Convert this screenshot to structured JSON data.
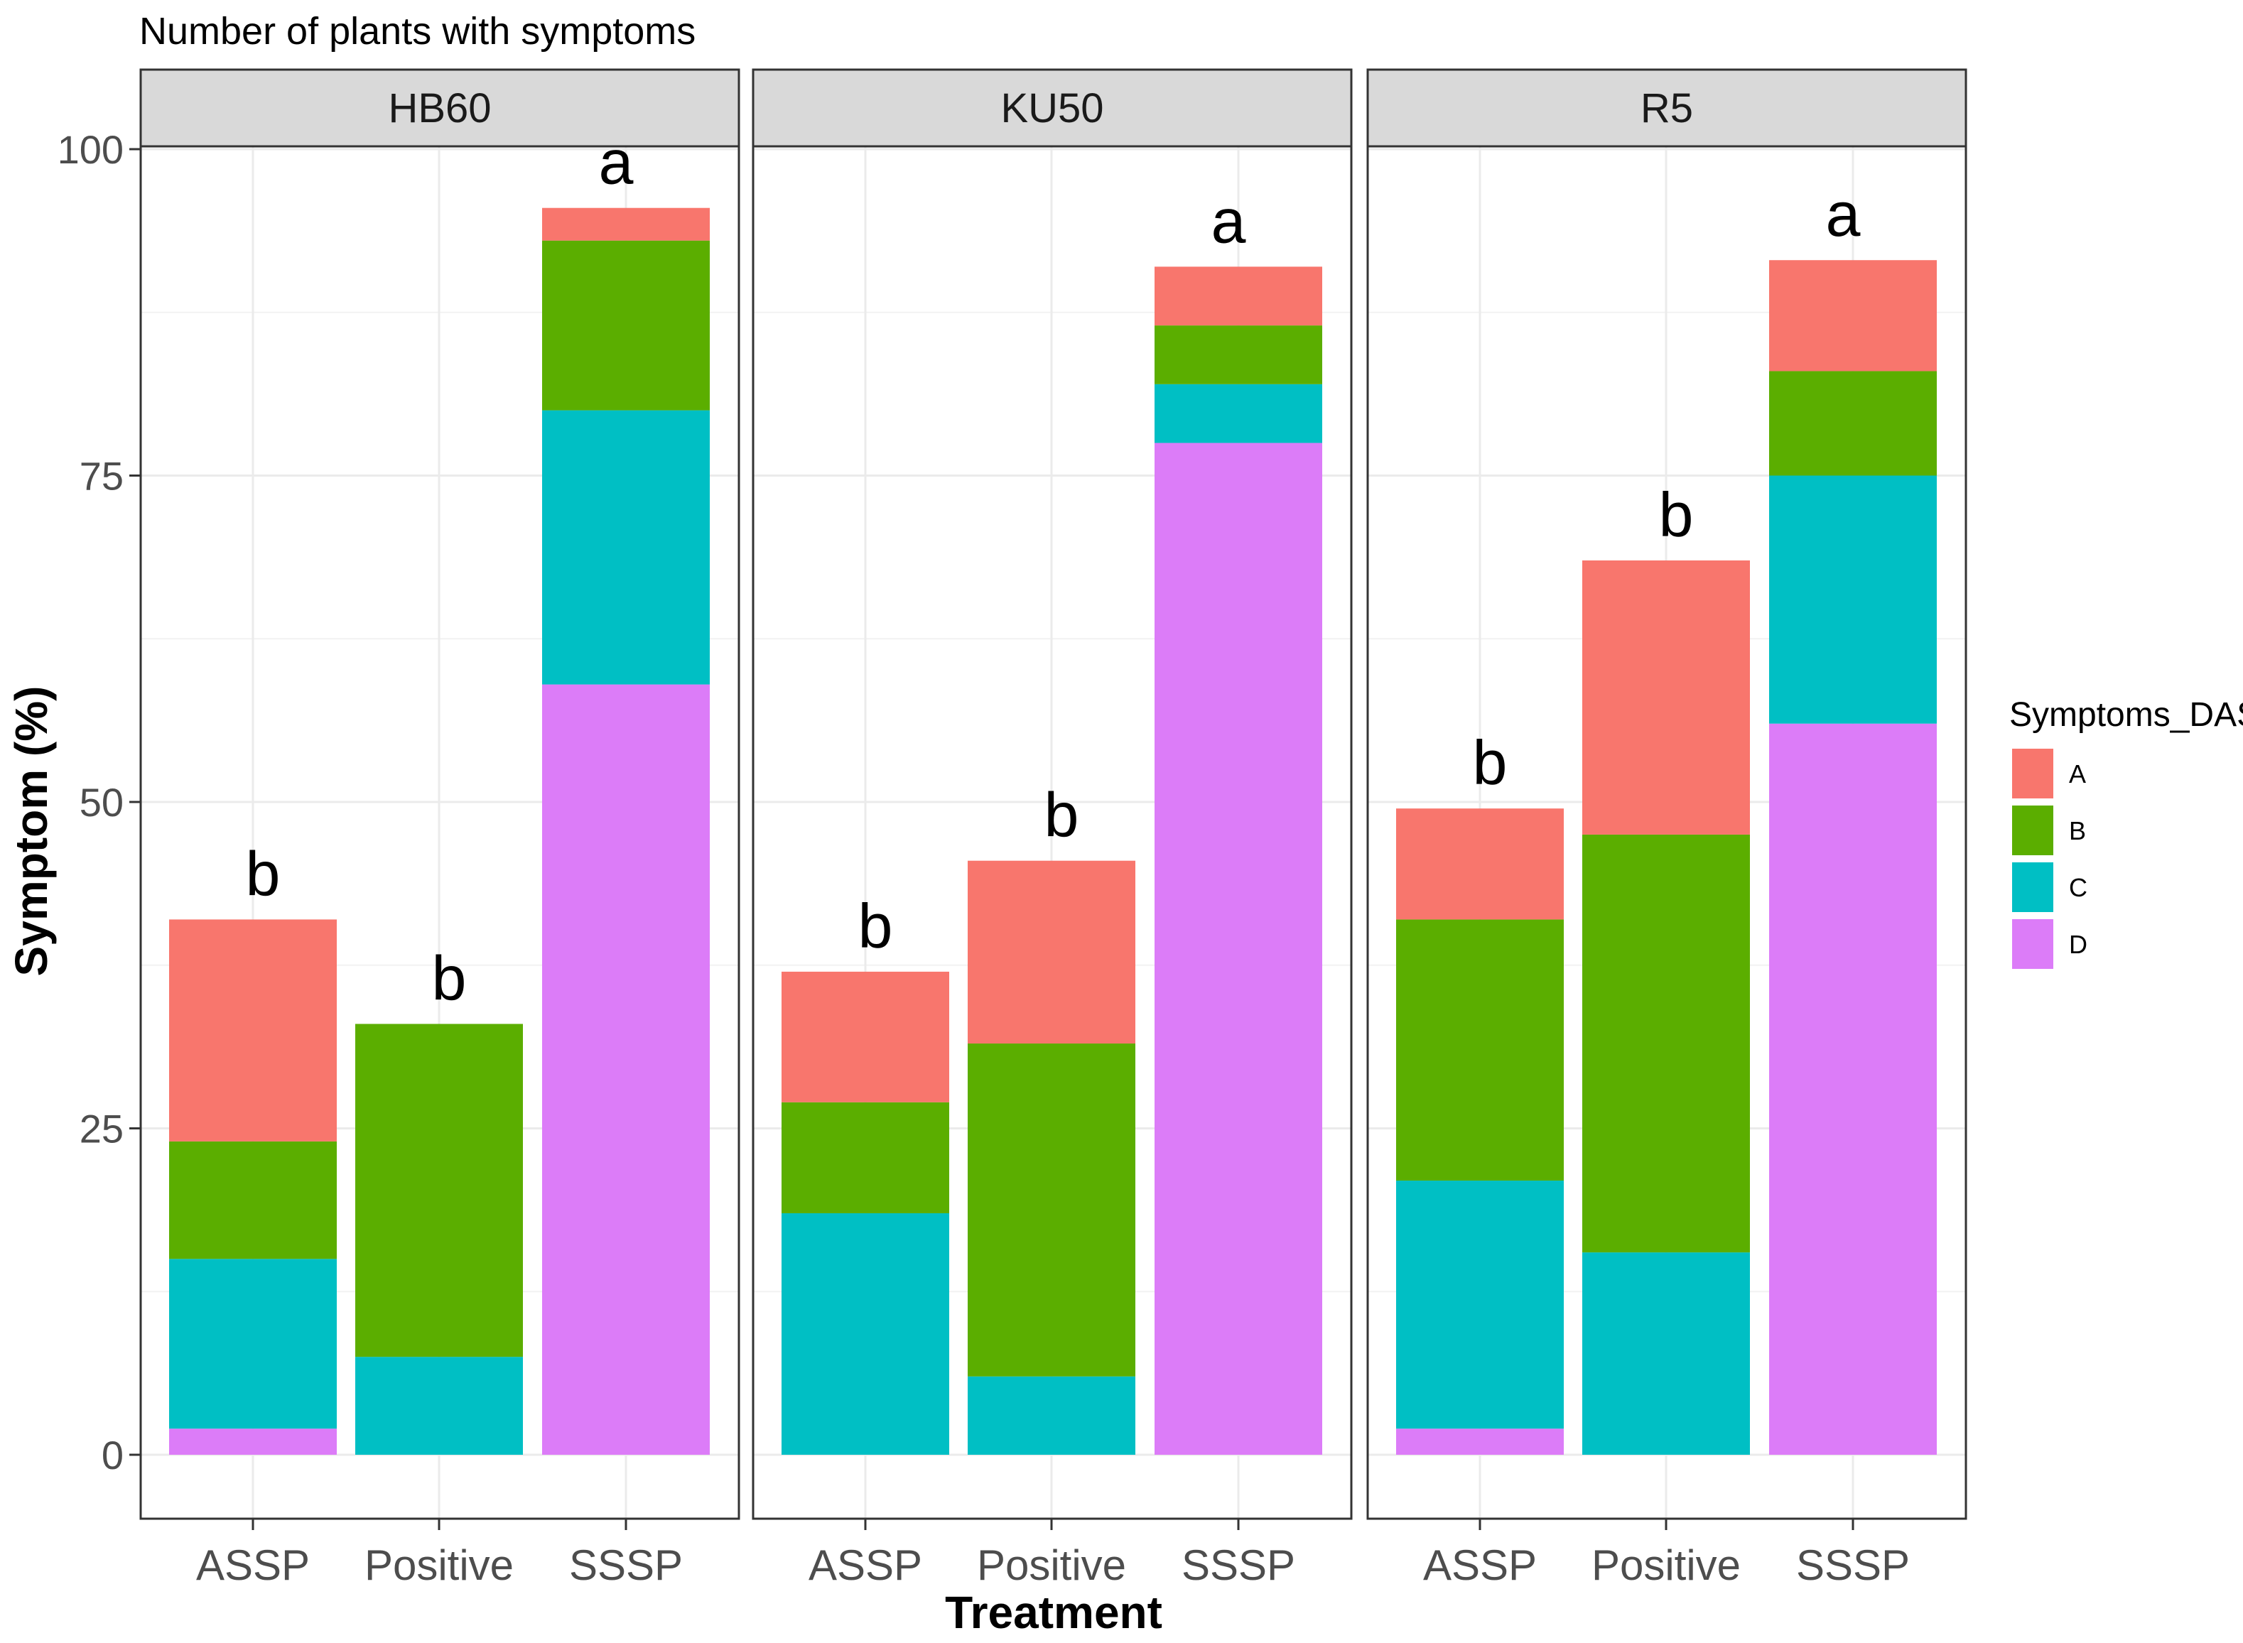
{
  "chart_data": {
    "type": "bar",
    "stacked": true,
    "title": "Number of plants with symptoms",
    "xlabel": "Treatment",
    "ylabel": "Symptom (%)",
    "ylim": [
      0,
      100
    ],
    "yticks": [
      0,
      25,
      50,
      75,
      100
    ],
    "grid": true,
    "legend": {
      "title": "Symptoms_DAS",
      "position": "right",
      "entries": [
        "A",
        "B",
        "C",
        "D"
      ]
    },
    "series_colors": {
      "A": "#F8766D",
      "B": "#5BAE00",
      "C": "#00BFC4",
      "D": "#DC7CF8"
    },
    "stack_order": [
      "D",
      "C",
      "B",
      "A"
    ],
    "categories": [
      "ASSP",
      "Positive",
      "SSSP"
    ],
    "panels": [
      {
        "name": "HB60",
        "bars": [
          {
            "category": "ASSP",
            "letter": "b",
            "D": 2,
            "C": 13,
            "B": 9,
            "A": 17
          },
          {
            "category": "Positive",
            "letter": "b",
            "D": 0,
            "C": 7.5,
            "B": 25.5,
            "A": 0
          },
          {
            "category": "SSSP",
            "letter": "a",
            "D": 59,
            "C": 21,
            "B": 13,
            "A": 2.5
          }
        ]
      },
      {
        "name": "KU50",
        "bars": [
          {
            "category": "ASSP",
            "letter": "b",
            "D": 0,
            "C": 18.5,
            "B": 8.5,
            "A": 10
          },
          {
            "category": "Positive",
            "letter": "b",
            "D": 0,
            "C": 6,
            "B": 25.5,
            "A": 14
          },
          {
            "category": "SSSP",
            "letter": "a",
            "D": 77.5,
            "C": 4.5,
            "B": 4.5,
            "A": 4.5
          }
        ]
      },
      {
        "name": "R5",
        "bars": [
          {
            "category": "ASSP",
            "letter": "b",
            "D": 2,
            "C": 19,
            "B": 20,
            "A": 8.5
          },
          {
            "category": "Positive",
            "letter": "b",
            "D": 0,
            "C": 15.5,
            "B": 32,
            "A": 21
          },
          {
            "category": "SSSP",
            "letter": "a",
            "D": 56,
            "C": 19,
            "B": 8,
            "A": 8.5
          }
        ]
      }
    ]
  }
}
